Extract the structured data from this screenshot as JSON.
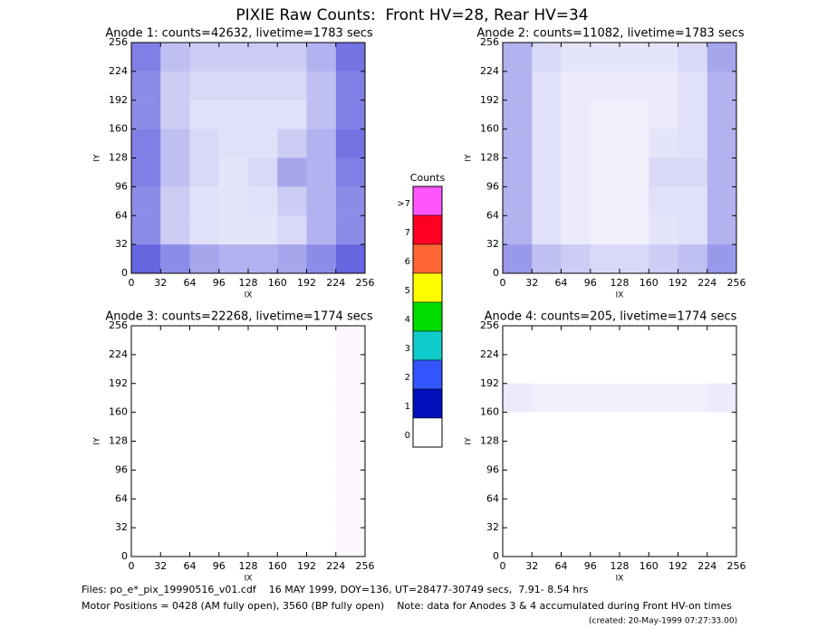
{
  "title": "PIXIE Raw Counts:  Front HV=28, Rear HV=34",
  "chart_data": [
    {
      "type": "heatmap",
      "title": "Anode 1: counts=42632, livetime=1783 secs",
      "xlabel": "IX",
      "ylabel": "IY",
      "color": "#0000cc",
      "xlim": [
        0,
        256
      ],
      "ylim": [
        0,
        256
      ],
      "xticks": [
        0,
        32,
        64,
        96,
        128,
        160,
        192,
        224,
        256
      ],
      "yticks": [
        0,
        32,
        64,
        96,
        128,
        160,
        192,
        224,
        256
      ],
      "density": [
        [
          0.5,
          0.25,
          0.2,
          0.2,
          0.2,
          0.2,
          0.3,
          0.55
        ],
        [
          0.45,
          0.2,
          0.15,
          0.15,
          0.15,
          0.15,
          0.25,
          0.5
        ],
        [
          0.45,
          0.2,
          0.12,
          0.12,
          0.12,
          0.12,
          0.25,
          0.5
        ],
        [
          0.5,
          0.25,
          0.15,
          0.12,
          0.12,
          0.2,
          0.3,
          0.55
        ],
        [
          0.5,
          0.25,
          0.15,
          0.1,
          0.15,
          0.35,
          0.3,
          0.5
        ],
        [
          0.45,
          0.2,
          0.12,
          0.1,
          0.12,
          0.2,
          0.3,
          0.45
        ],
        [
          0.45,
          0.2,
          0.12,
          0.1,
          0.1,
          0.15,
          0.3,
          0.45
        ],
        [
          0.6,
          0.45,
          0.35,
          0.3,
          0.3,
          0.35,
          0.45,
          0.6
        ]
      ]
    },
    {
      "type": "heatmap",
      "title": "Anode 2: counts=11082, livetime=1783 secs",
      "xlabel": "IX",
      "ylabel": "IY",
      "color": "#0000cc",
      "xlim": [
        0,
        256
      ],
      "ylim": [
        0,
        256
      ],
      "xticks": [
        0,
        32,
        64,
        96,
        128,
        160,
        192,
        224,
        256
      ],
      "yticks": [
        0,
        32,
        64,
        96,
        128,
        160,
        192,
        224,
        256
      ],
      "density": [
        [
          0.3,
          0.15,
          0.1,
          0.1,
          0.1,
          0.1,
          0.15,
          0.35
        ],
        [
          0.3,
          0.12,
          0.08,
          0.08,
          0.08,
          0.08,
          0.12,
          0.3
        ],
        [
          0.3,
          0.12,
          0.08,
          0.06,
          0.06,
          0.08,
          0.12,
          0.3
        ],
        [
          0.3,
          0.12,
          0.08,
          0.06,
          0.06,
          0.1,
          0.12,
          0.3
        ],
        [
          0.3,
          0.12,
          0.08,
          0.06,
          0.06,
          0.15,
          0.15,
          0.3
        ],
        [
          0.3,
          0.12,
          0.08,
          0.06,
          0.06,
          0.12,
          0.12,
          0.3
        ],
        [
          0.3,
          0.12,
          0.08,
          0.06,
          0.06,
          0.1,
          0.12,
          0.3
        ],
        [
          0.4,
          0.25,
          0.2,
          0.15,
          0.15,
          0.2,
          0.25,
          0.4
        ]
      ]
    },
    {
      "type": "heatmap",
      "title": "Anode 3: counts=22268, livetime=1774 secs",
      "xlabel": "IX",
      "ylabel": "IY",
      "color": "#cc33cc",
      "xlim": [
        0,
        256
      ],
      "ylim": [
        0,
        256
      ],
      "xticks": [
        0,
        32,
        64,
        96,
        128,
        160,
        192,
        224,
        256
      ],
      "yticks": [
        0,
        32,
        64,
        96,
        128,
        160,
        192,
        224,
        256
      ],
      "density": [
        [
          0,
          0,
          0,
          0,
          0,
          0,
          0,
          0.04
        ],
        [
          0,
          0,
          0,
          0,
          0,
          0,
          0,
          0.04
        ],
        [
          0,
          0,
          0,
          0,
          0,
          0,
          0,
          0.04
        ],
        [
          0,
          0,
          0,
          0,
          0,
          0,
          0,
          0.04
        ],
        [
          0,
          0,
          0,
          0,
          0,
          0,
          0,
          0.04
        ],
        [
          0,
          0,
          0,
          0,
          0,
          0,
          0,
          0.04
        ],
        [
          0,
          0,
          0,
          0,
          0,
          0,
          0,
          0.04
        ],
        [
          0,
          0,
          0,
          0,
          0,
          0,
          0,
          0.04
        ]
      ]
    },
    {
      "type": "heatmap",
      "title": "Anode 4: counts=205, livetime=1774 secs",
      "xlabel": "IX",
      "ylabel": "IY",
      "color": "#0000cc",
      "xlim": [
        0,
        256
      ],
      "ylim": [
        0,
        256
      ],
      "xticks": [
        0,
        32,
        64,
        96,
        128,
        160,
        192,
        224,
        256
      ],
      "yticks": [
        0,
        32,
        64,
        96,
        128,
        160,
        192,
        224,
        256
      ],
      "density": [
        [
          0,
          0,
          0,
          0,
          0,
          0,
          0,
          0
        ],
        [
          0,
          0,
          0,
          0,
          0,
          0,
          0,
          0
        ],
        [
          0.08,
          0.06,
          0.06,
          0.06,
          0.06,
          0.06,
          0.06,
          0.08
        ],
        [
          0,
          0,
          0,
          0,
          0,
          0,
          0,
          0
        ],
        [
          0,
          0,
          0,
          0,
          0,
          0,
          0,
          0
        ],
        [
          0,
          0,
          0,
          0,
          0,
          0,
          0,
          0
        ],
        [
          0,
          0,
          0,
          0,
          0,
          0,
          0,
          0
        ],
        [
          0,
          0,
          0,
          0,
          0,
          0,
          0,
          0
        ]
      ]
    }
  ],
  "colorbar": {
    "title": "Counts",
    "labels": [
      ">7",
      "7",
      "6",
      "5",
      "4",
      "3",
      "2",
      "1",
      "0"
    ],
    "colors": [
      "#ff55ff",
      "#ff0022",
      "#ff6633",
      "#ffff00",
      "#00dd00",
      "#11cccc",
      "#3355ff",
      "#0011bb",
      "#ffffff"
    ]
  },
  "footer": [
    "Files: po_e*_pix_19990516_v01.cdf    16 MAY 1999, DOY=136, UT=28477-30749 secs,  7.91- 8.54 hrs",
    "Motor Positions = 0428 (AM fully open), 3560 (BP fully open)    Note: data for Anodes 3 & 4 accumulated during Front HV-on times",
    "(created: 20-May-1999 07:27:33.00)"
  ]
}
